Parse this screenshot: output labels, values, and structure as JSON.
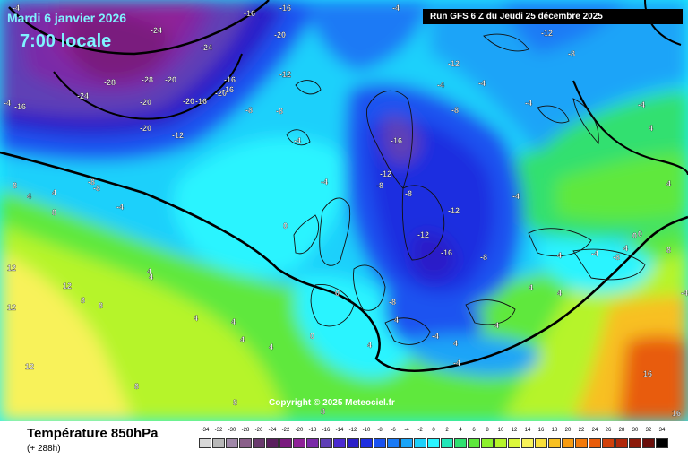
{
  "header": {
    "date": "Mardi 6 janvier 2026",
    "time": "7:00 locale",
    "run": "Run GFS 6 Z du Jeudi 25 décembre 2025"
  },
  "copyright": "Copyright © 2025 Meteociel.fr",
  "footer": {
    "parameter": "Température 850hPa",
    "forecast_hour": "(+ 288h)"
  },
  "legend": {
    "labels": [
      "-34",
      "-32",
      "-30",
      "-28",
      "-26",
      "-24",
      "-22",
      "-20",
      "-18",
      "-16",
      "-14",
      "-12",
      "-10",
      "-8",
      "-6",
      "-4",
      "-2",
      "0",
      "2",
      "4",
      "6",
      "8",
      "10",
      "12",
      "14",
      "16",
      "18",
      "20",
      "22",
      "24",
      "26",
      "28",
      "30",
      "32",
      "34"
    ],
    "colors": [
      "#d8d8d8",
      "#b8b8b8",
      "#a088a8",
      "#8a5f8a",
      "#6a3a6e",
      "#5a1f5e",
      "#7a1a7e",
      "#8f2298",
      "#7a2aa8",
      "#5f3fb6",
      "#4a2ad0",
      "#2b1fc8",
      "#1e2ee0",
      "#1a52f0",
      "#1a7af5",
      "#1aa4f8",
      "#1ed0fb",
      "#2af4ff",
      "#22e6b8",
      "#30e070",
      "#5ee83c",
      "#8cf02c",
      "#b6f42a",
      "#dcf73a",
      "#f8f25a",
      "#fae03a",
      "#f8c022",
      "#f89c12",
      "#f47a0a",
      "#e85c0a",
      "#d0400a",
      "#b0280a",
      "#8c1a0a",
      "#6a0e0a",
      "#000000"
    ]
  },
  "isotherm_labels": [
    {
      "t": "-4"
    },
    {
      "t": "-16"
    },
    {
      "t": "-24"
    },
    {
      "t": "-24"
    },
    {
      "t": "-20"
    },
    {
      "t": "-16"
    },
    {
      "t": "-12"
    },
    {
      "t": "-4"
    },
    {
      "t": "-28"
    },
    {
      "t": "-28"
    },
    {
      "t": "-20"
    },
    {
      "t": "-16"
    },
    {
      "t": "-20"
    },
    {
      "t": "-12"
    },
    {
      "t": "-8"
    },
    {
      "t": "-24"
    },
    {
      "t": "-20"
    },
    {
      "t": "-20"
    },
    {
      "t": "-16"
    },
    {
      "t": "-16"
    },
    {
      "t": "-16"
    },
    {
      "t": "-8"
    },
    {
      "t": "-12"
    },
    {
      "t": "-12"
    },
    {
      "t": "-8"
    },
    {
      "t": "-20"
    },
    {
      "t": "-12"
    },
    {
      "t": "-4"
    },
    {
      "t": "-16"
    },
    {
      "t": "-12"
    },
    {
      "t": "-8"
    },
    {
      "t": "-4"
    },
    {
      "t": "-4"
    },
    {
      "t": "-4"
    },
    {
      "t": "-8"
    },
    {
      "t": "-8"
    },
    {
      "t": "-8"
    },
    {
      "t": "-12"
    },
    {
      "t": "-12"
    },
    {
      "t": "-16"
    },
    {
      "t": "-8"
    },
    {
      "t": "-8"
    },
    {
      "t": "-4"
    },
    {
      "t": "-4"
    },
    {
      "t": "-8"
    },
    {
      "t": "0"
    },
    {
      "t": "-4"
    },
    {
      "t": "0"
    },
    {
      "t": "-4"
    },
    {
      "t": "-4"
    },
    {
      "t": "-4"
    },
    {
      "t": "0"
    },
    {
      "t": "-4"
    },
    {
      "t": "-8"
    },
    {
      "t": "-4"
    },
    {
      "t": "0"
    },
    {
      "t": "4"
    },
    {
      "t": "4"
    },
    {
      "t": "4"
    },
    {
      "t": "4"
    },
    {
      "t": "4"
    },
    {
      "t": "4"
    },
    {
      "t": "4"
    },
    {
      "t": "4"
    },
    {
      "t": "4"
    },
    {
      "t": "4"
    },
    {
      "t": "4"
    },
    {
      "t": "4"
    },
    {
      "t": "4"
    },
    {
      "t": "4"
    },
    {
      "t": "8"
    },
    {
      "t": "8"
    },
    {
      "t": "8"
    },
    {
      "t": "8"
    },
    {
      "t": "8"
    },
    {
      "t": "8"
    },
    {
      "t": "8"
    },
    {
      "t": "8"
    },
    {
      "t": "12"
    },
    {
      "t": "12"
    },
    {
      "t": "12"
    },
    {
      "t": "12"
    },
    {
      "t": "16"
    },
    {
      "t": "16"
    },
    {
      "t": "-4"
    },
    {
      "t": "4"
    },
    {
      "t": "4"
    },
    {
      "t": "4"
    },
    {
      "t": "0"
    },
    {
      "t": "4"
    }
  ]
}
